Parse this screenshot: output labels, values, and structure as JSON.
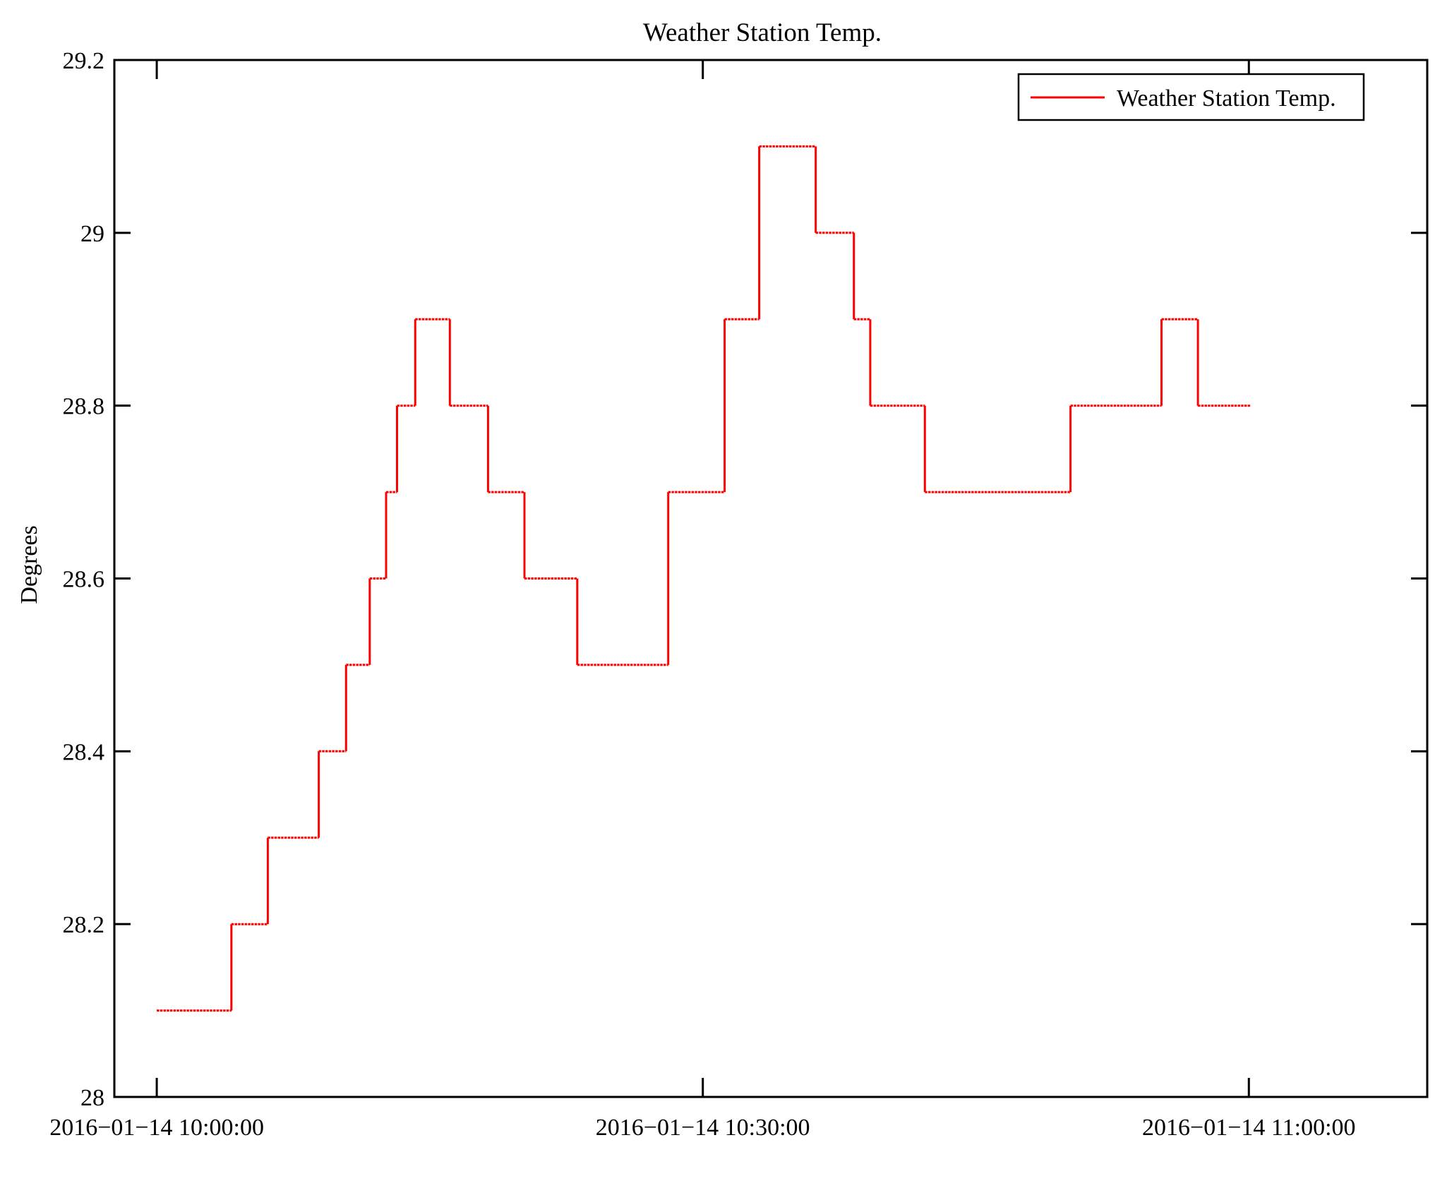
{
  "window": {
    "background": "#ffffff"
  },
  "chart_data": {
    "type": "line",
    "step_mode": "post",
    "title": "Weather Station Temp.",
    "ylabel": "Degrees",
    "series": [
      {
        "name": "Weather Station Temp."
      }
    ],
    "legend": {
      "label": "Weather Station Temp.",
      "position": "top-right"
    },
    "line_color": "#ff0000",
    "grid": false,
    "ylim": [
      28,
      29.2
    ],
    "yticks": [
      {
        "v": 28.0,
        "label": "28"
      },
      {
        "v": 28.2,
        "label": "28.2"
      },
      {
        "v": 28.4,
        "label": "28.4"
      },
      {
        "v": 28.6,
        "label": "28.6"
      },
      {
        "v": 28.8,
        "label": "28.8"
      },
      {
        "v": 29.0,
        "label": "29"
      },
      {
        "v": 29.2,
        "label": "29.2"
      }
    ],
    "x_epoch": "minutes after 2016-01-14 10:00:00",
    "xlim_minutes": [
      -2.33,
      69.8
    ],
    "xticks": [
      {
        "minute": 0,
        "label": "2016−01−14 10:00:00"
      },
      {
        "minute": 30,
        "label": "2016−01−14 10:30:00"
      },
      {
        "minute": 60,
        "label": "2016−01−14 11:00:00"
      }
    ],
    "points": [
      {
        "t_min": 0.0,
        "temp": 28.1
      },
      {
        "t_min": 4.1,
        "temp": 28.2
      },
      {
        "t_min": 6.1,
        "temp": 28.3
      },
      {
        "t_min": 8.9,
        "temp": 28.4
      },
      {
        "t_min": 10.4,
        "temp": 28.5
      },
      {
        "t_min": 11.7,
        "temp": 28.6
      },
      {
        "t_min": 12.6,
        "temp": 28.7
      },
      {
        "t_min": 13.2,
        "temp": 28.8
      },
      {
        "t_min": 14.2,
        "temp": 28.9
      },
      {
        "t_min": 16.1,
        "temp": 28.8
      },
      {
        "t_min": 18.2,
        "temp": 28.7
      },
      {
        "t_min": 20.2,
        "temp": 28.6
      },
      {
        "t_min": 23.1,
        "temp": 28.5
      },
      {
        "t_min": 28.1,
        "temp": 28.7
      },
      {
        "t_min": 31.2,
        "temp": 28.9
      },
      {
        "t_min": 33.1,
        "temp": 29.1
      },
      {
        "t_min": 36.2,
        "temp": 29.0
      },
      {
        "t_min": 38.3,
        "temp": 28.9
      },
      {
        "t_min": 39.2,
        "temp": 28.8
      },
      {
        "t_min": 42.2,
        "temp": 28.7
      },
      {
        "t_min": 50.2,
        "temp": 28.8
      },
      {
        "t_min": 55.2,
        "temp": 28.9
      },
      {
        "t_min": 57.2,
        "temp": 28.8
      }
    ],
    "end_min": 60.1
  }
}
